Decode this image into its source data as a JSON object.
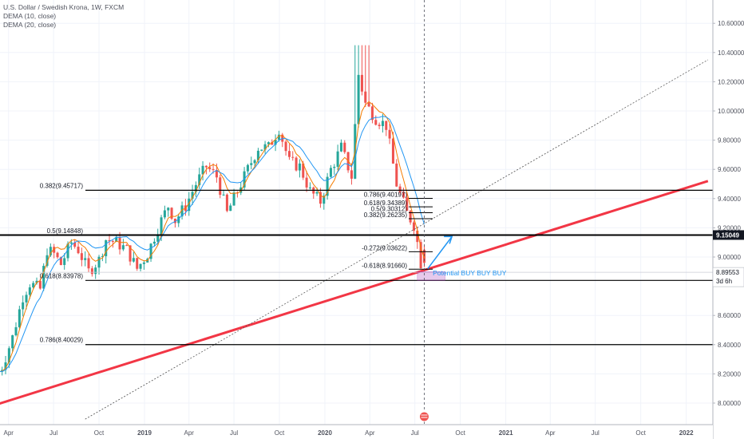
{
  "legend": {
    "symbol_line": "U.S. Dollar / Swedish Krona, 1W, FXCM",
    "indicator_1": "DEMA (10, close)",
    "indicator_2": "DEMA (20, close)"
  },
  "chart_data": {
    "type": "candlestick",
    "symbol": "U.S. Dollar / Swedish Krona",
    "interval": "1W",
    "source": "FXCM",
    "ylim": [
      7.9,
      10.7
    ],
    "y_ticks": [
      "10.60000",
      "10.40000",
      "10.20000",
      "10.00000",
      "9.80000",
      "9.60000",
      "9.40000",
      "9.20000",
      "9.00000",
      "8.60000",
      "8.40000",
      "8.20000",
      "8.00000"
    ],
    "x_ticks": [
      "Apr",
      "Jul",
      "Oct",
      "2019",
      "Apr",
      "Jul",
      "Oct",
      "2020",
      "Apr",
      "Jul",
      "Oct",
      "2021",
      "Apr",
      "Jul",
      "Oct",
      "2022"
    ],
    "x_tick_dates": [
      "2018-04-01",
      "2018-07-01",
      "2018-10-01",
      "2019-01-01",
      "2019-04-01",
      "2019-07-01",
      "2019-10-01",
      "2020-01-01",
      "2020-04-01",
      "2020-07-01",
      "2020-10-01",
      "2021-01-01",
      "2021-04-01",
      "2021-07-01",
      "2021-10-01",
      "2022-01-01"
    ],
    "price_anchors": [
      [
        "2018-03-12",
        8.18
      ],
      [
        "2018-03-26",
        8.25
      ],
      [
        "2018-04-16",
        8.45
      ],
      [
        "2018-05-07",
        8.73
      ],
      [
        "2018-05-21",
        8.82
      ],
      [
        "2018-06-11",
        8.78
      ],
      [
        "2018-06-25",
        9.05
      ],
      [
        "2018-07-09",
        9.02
      ],
      [
        "2018-07-23",
        8.95
      ],
      [
        "2018-08-13",
        9.1
      ],
      [
        "2018-08-27",
        9.05
      ],
      [
        "2018-09-17",
        8.9
      ],
      [
        "2018-10-08",
        8.98
      ],
      [
        "2018-10-22",
        9.12
      ],
      [
        "2018-11-12",
        9.1
      ],
      [
        "2018-12-03",
        9.05
      ],
      [
        "2018-12-24",
        8.92
      ],
      [
        "2019-01-14",
        9.02
      ],
      [
        "2019-02-04",
        9.2
      ],
      [
        "2019-02-25",
        9.35
      ],
      [
        "2019-03-11",
        9.25
      ],
      [
        "2019-04-01",
        9.35
      ],
      [
        "2019-04-22",
        9.5
      ],
      [
        "2019-05-13",
        9.62
      ],
      [
        "2019-06-03",
        9.55
      ],
      [
        "2019-06-24",
        9.3
      ],
      [
        "2019-07-15",
        9.45
      ],
      [
        "2019-08-05",
        9.6
      ],
      [
        "2019-08-26",
        9.75
      ],
      [
        "2019-09-16",
        9.75
      ],
      [
        "2019-10-07",
        9.88
      ],
      [
        "2019-10-28",
        9.65
      ],
      [
        "2019-11-18",
        9.62
      ],
      [
        "2019-12-09",
        9.45
      ],
      [
        "2019-12-30",
        9.38
      ],
      [
        "2020-01-20",
        9.6
      ],
      [
        "2020-02-10",
        9.75
      ],
      [
        "2020-03-02",
        9.55
      ],
      [
        "2020-03-16",
        10.25
      ],
      [
        "2020-03-30",
        10.05
      ],
      [
        "2020-04-20",
        9.95
      ],
      [
        "2020-05-11",
        9.9
      ],
      [
        "2020-06-01",
        9.5
      ],
      [
        "2020-06-22",
        9.3
      ],
      [
        "2020-07-06",
        9.22
      ],
      [
        "2020-07-13",
        9.1
      ],
      [
        "2020-07-20",
        8.96
      ]
    ],
    "last_candle": {
      "date": "2020-07-20",
      "open": 9.05,
      "high": 9.08,
      "low": 8.93,
      "close": 8.96
    },
    "series": [
      {
        "name": "DEMA (10, close)",
        "color": "#f57c00"
      },
      {
        "name": "DEMA (20, close)",
        "color": "#2196f3"
      }
    ],
    "fibonacci_levels": [
      {
        "label": "0.382(9.45717)",
        "value": 9.45717
      },
      {
        "label": "0.5(9.14848)",
        "value": 9.14848
      },
      {
        "label": "0.618(8.83978)",
        "value": 8.83978
      },
      {
        "label": "0.786(8.40029)",
        "value": 8.40029
      }
    ],
    "fibonacci_levels_2": [
      {
        "label": "0.786(9.40197)",
        "value": 9.40197
      },
      {
        "label": "0.618(9.34389)",
        "value": 9.34389
      },
      {
        "label": "0.5(9.30312)",
        "value": 9.30312
      },
      {
        "label": "0.382(9.26235)",
        "value": 9.26235
      },
      {
        "label": "-0.272(9.03622)",
        "value": 9.03622
      },
      {
        "label": "-0.618(8.91660)",
        "value": 8.9166
      }
    ],
    "horizontal_line": {
      "value": 9.15049,
      "label": "9.15049"
    },
    "current_price": {
      "value": 8.89553,
      "label": "8.89553",
      "countdown": "3d 6h"
    },
    "trendlines": [
      {
        "name": "red-trendline",
        "from": [
          "2018-02-26",
          7.98
        ],
        "to": [
          "2022-02-14",
          9.52
        ],
        "color": "#f23645"
      },
      {
        "name": "dotted-trendline",
        "from": [
          "2018-09-03",
          7.89
        ],
        "to": [
          "2022-02-14",
          10.35
        ],
        "color": "#555555"
      }
    ],
    "vertical_marker_date": "2020-07-20",
    "annotation": {
      "text": "Potential BUY BUY BUY",
      "price": 8.89,
      "color": "#2196f3"
    },
    "buy_zone": {
      "date_from": "2020-07-06",
      "date_to": "2020-08-31",
      "price_low": 8.84,
      "price_high": 8.9
    },
    "arrow": {
      "from": [
        "2020-07-27",
        8.92
      ],
      "to": [
        "2020-09-14",
        9.14
      ]
    }
  }
}
